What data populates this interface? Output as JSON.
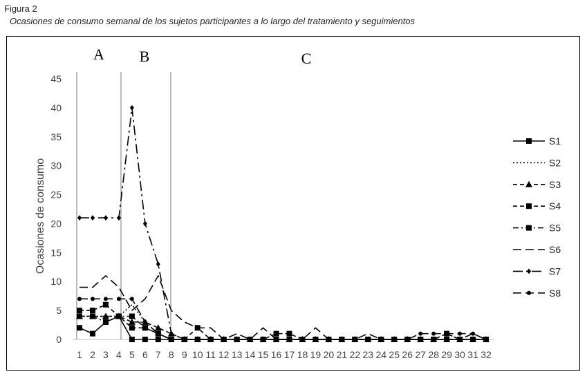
{
  "figure": {
    "label": "Figura 2",
    "caption": "Ocasiones de consumo semanal de los sujetos participantes a lo largo del tratamiento y seguimientos"
  },
  "chart_data": {
    "type": "line",
    "title": "",
    "xlabel": "",
    "ylabel": "Ocasiones de consumo",
    "x": [
      1,
      2,
      3,
      4,
      5,
      6,
      7,
      8,
      9,
      10,
      11,
      12,
      13,
      14,
      15,
      16,
      17,
      18,
      19,
      20,
      21,
      22,
      23,
      24,
      25,
      26,
      27,
      28,
      29,
      30,
      31,
      32
    ],
    "ylim": [
      0,
      45
    ],
    "yticks": [
      0,
      5,
      10,
      15,
      20,
      25,
      30,
      35,
      40,
      45
    ],
    "grid": false,
    "legend_position": "right",
    "phases": [
      {
        "label": "A",
        "x_start": 1,
        "x_end": 4
      },
      {
        "label": "B",
        "x_start": 4,
        "x_end": 8
      },
      {
        "label": "C",
        "x_start": 8,
        "x_end": 32
      }
    ],
    "phase_boundaries": [
      1,
      4.5,
      8
    ],
    "series": [
      {
        "name": "S1",
        "color": "#000000",
        "dash": "solid",
        "marker": "square",
        "values": [
          2,
          1,
          3,
          4,
          0,
          0,
          0,
          0,
          0,
          0,
          0,
          0,
          0,
          0,
          0,
          0,
          0,
          0,
          0,
          0,
          0,
          0,
          0,
          0,
          0,
          0,
          0,
          0,
          0,
          0,
          0,
          0
        ]
      },
      {
        "name": "S2",
        "color": "#000000",
        "dash": "dot",
        "marker": "none",
        "values": [
          4,
          4,
          4,
          4,
          6,
          3,
          1,
          0,
          0,
          0,
          0,
          0,
          0,
          0,
          0,
          0,
          0,
          0,
          0,
          0,
          0,
          0,
          0,
          0,
          0,
          0,
          0,
          0,
          0,
          0,
          0,
          0
        ]
      },
      {
        "name": "S3",
        "color": "#000000",
        "dash": "dash",
        "marker": "triangle",
        "values": [
          4,
          4,
          4,
          4,
          3,
          3,
          2,
          1,
          0,
          0,
          0,
          0,
          0,
          0,
          0,
          0,
          0,
          0,
          0,
          0,
          0,
          0,
          0,
          0,
          0,
          0,
          0,
          0,
          0,
          0,
          0,
          0
        ]
      },
      {
        "name": "S4",
        "color": "#000000",
        "dash": "dash",
        "marker": "square",
        "values": [
          5,
          5,
          6,
          4,
          2,
          2,
          1,
          0,
          0,
          2,
          0,
          0,
          0,
          0,
          0,
          1,
          1,
          0,
          0,
          0,
          0,
          0,
          0,
          0,
          0,
          0,
          0,
          0,
          1,
          0,
          0,
          0
        ]
      },
      {
        "name": "S5",
        "color": "#000000",
        "dash": "dashdot",
        "marker": "square",
        "values": [
          4,
          4,
          3,
          4,
          4,
          2,
          1,
          0,
          0,
          0,
          0,
          0,
          0,
          0,
          0,
          0,
          0,
          0,
          0,
          0,
          0,
          0,
          0,
          0,
          0,
          0,
          0,
          0,
          0,
          0,
          0,
          0
        ]
      },
      {
        "name": "S6",
        "color": "#000000",
        "dash": "longdash",
        "marker": "none",
        "values": [
          9,
          9,
          11,
          9,
          5,
          7,
          11,
          5,
          3,
          2,
          2,
          0,
          1,
          0,
          2,
          0,
          0,
          0,
          2,
          0,
          0,
          0,
          1,
          0,
          0,
          0,
          0,
          0,
          1,
          0,
          1,
          0
        ]
      },
      {
        "name": "S7",
        "color": "#000000",
        "dash": "longdashdot",
        "marker": "diamond",
        "values": [
          21,
          21,
          21,
          21,
          40,
          20,
          13,
          1,
          0,
          0,
          0,
          0,
          0,
          0,
          0,
          0,
          0,
          0,
          0,
          0,
          0,
          0,
          0,
          0,
          0,
          0,
          0,
          0,
          0,
          0,
          0,
          0
        ]
      },
      {
        "name": "S8",
        "color": "#000000",
        "dash": "longdash",
        "marker": "circle",
        "values": [
          7,
          7,
          7,
          7,
          7,
          3,
          1,
          0,
          0,
          0,
          0,
          0,
          0,
          0,
          0,
          0,
          0,
          0,
          0,
          0,
          0,
          0,
          0,
          0,
          0,
          0,
          1,
          1,
          1,
          1,
          1,
          0
        ]
      }
    ]
  }
}
